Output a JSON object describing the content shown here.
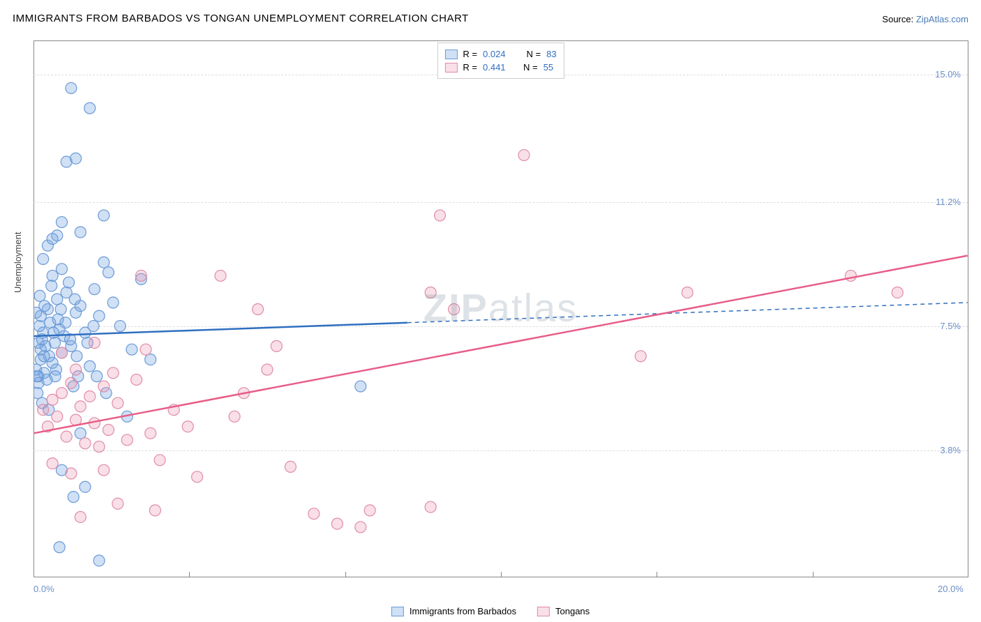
{
  "title": "IMMIGRANTS FROM BARBADOS VS TONGAN UNEMPLOYMENT CORRELATION CHART",
  "source_label": "Source:",
  "source_name": "ZipAtlas.com",
  "y_axis_label": "Unemployment",
  "watermark": {
    "bold": "ZIP",
    "rest": "atlas"
  },
  "chart": {
    "type": "scatter",
    "background_color": "#ffffff",
    "grid_color": "#dddddd",
    "xlim": [
      0,
      20
    ],
    "ylim": [
      0,
      16
    ],
    "x_tick_labels": [
      {
        "value": 0,
        "label": "0.0%"
      },
      {
        "value": 20,
        "label": "20.0%"
      }
    ],
    "x_minor_ticks": [
      3.33,
      6.67,
      10,
      13.33,
      16.67
    ],
    "y_ticks": [
      {
        "value": 3.8,
        "label": "3.8%"
      },
      {
        "value": 7.5,
        "label": "7.5%"
      },
      {
        "value": 11.2,
        "label": "11.2%"
      },
      {
        "value": 15.0,
        "label": "15.0%"
      }
    ],
    "series": [
      {
        "name": "Immigrants from Barbados",
        "fill": "rgba(120,165,225,0.35)",
        "stroke": "#6a9ad6",
        "line_color": "#2f6fc0",
        "r_value": "0.024",
        "n_value": "83",
        "trend": {
          "y_at_x0": 7.2,
          "y_at_x20": 8.2,
          "solid_until_x": 8.0
        },
        "points": [
          [
            0.1,
            7.0
          ],
          [
            0.15,
            6.5
          ],
          [
            0.1,
            6.0
          ],
          [
            0.2,
            7.3
          ],
          [
            0.15,
            6.8
          ],
          [
            0.05,
            6.2
          ],
          [
            0.1,
            5.8
          ],
          [
            0.25,
            6.9
          ],
          [
            0.12,
            7.5
          ],
          [
            0.18,
            7.1
          ],
          [
            0.3,
            8.0
          ],
          [
            0.22,
            6.1
          ],
          [
            0.08,
            5.5
          ],
          [
            0.35,
            7.6
          ],
          [
            0.4,
            6.4
          ],
          [
            0.28,
            5.9
          ],
          [
            0.15,
            7.8
          ],
          [
            0.5,
            8.3
          ],
          [
            0.45,
            7.0
          ],
          [
            0.6,
            6.7
          ],
          [
            0.55,
            7.4
          ],
          [
            0.4,
            9.0
          ],
          [
            0.7,
            8.5
          ],
          [
            0.65,
            7.2
          ],
          [
            0.8,
            6.9
          ],
          [
            0.9,
            7.9
          ],
          [
            0.75,
            8.8
          ],
          [
            1.0,
            8.1
          ],
          [
            1.1,
            7.3
          ],
          [
            1.2,
            6.3
          ],
          [
            0.85,
            5.7
          ],
          [
            0.95,
            6.0
          ],
          [
            1.3,
            8.6
          ],
          [
            1.4,
            7.8
          ],
          [
            1.5,
            9.4
          ],
          [
            1.5,
            10.8
          ],
          [
            1.6,
            9.1
          ],
          [
            0.5,
            10.2
          ],
          [
            0.6,
            10.6
          ],
          [
            1.0,
            10.3
          ],
          [
            1.0,
            4.3
          ],
          [
            0.6,
            3.2
          ],
          [
            0.85,
            2.4
          ],
          [
            1.1,
            2.7
          ],
          [
            0.55,
            0.9
          ],
          [
            1.4,
            0.5
          ],
          [
            0.7,
            12.4
          ],
          [
            0.9,
            12.5
          ],
          [
            0.8,
            14.6
          ],
          [
            1.2,
            14.0
          ],
          [
            0.2,
            9.5
          ],
          [
            0.3,
            9.9
          ],
          [
            0.4,
            10.1
          ],
          [
            1.7,
            8.2
          ],
          [
            1.85,
            7.5
          ],
          [
            2.1,
            6.8
          ],
          [
            2.3,
            8.9
          ],
          [
            2.5,
            6.5
          ],
          [
            2.0,
            4.8
          ],
          [
            7.0,
            5.7
          ],
          [
            1.35,
            6.0
          ],
          [
            1.55,
            5.5
          ],
          [
            0.33,
            6.6
          ],
          [
            0.48,
            6.2
          ],
          [
            0.05,
            7.9
          ],
          [
            0.13,
            8.4
          ],
          [
            0.23,
            8.1
          ],
          [
            0.38,
            8.7
          ],
          [
            0.6,
            9.2
          ],
          [
            0.22,
            6.6
          ],
          [
            0.07,
            6.0
          ],
          [
            0.42,
            7.3
          ],
          [
            0.58,
            8.0
          ],
          [
            0.18,
            5.2
          ],
          [
            0.32,
            5.0
          ],
          [
            0.52,
            7.7
          ],
          [
            0.46,
            6.0
          ],
          [
            0.92,
            6.6
          ],
          [
            1.15,
            7.0
          ],
          [
            1.28,
            7.5
          ],
          [
            0.78,
            7.1
          ],
          [
            0.68,
            7.6
          ],
          [
            0.88,
            8.3
          ]
        ]
      },
      {
        "name": "Tongans",
        "fill": "rgba(235,150,175,0.30)",
        "stroke": "#e08ca6",
        "line_color": "#e85d88",
        "r_value": "0.441",
        "n_value": "55",
        "trend": {
          "y_at_x0": 4.3,
          "y_at_x20": 9.6,
          "solid_until_x": 20.0
        },
        "points": [
          [
            0.2,
            5.0
          ],
          [
            0.3,
            4.5
          ],
          [
            0.4,
            5.3
          ],
          [
            0.5,
            4.8
          ],
          [
            0.6,
            5.5
          ],
          [
            0.7,
            4.2
          ],
          [
            0.8,
            5.8
          ],
          [
            0.9,
            4.7
          ],
          [
            1.0,
            5.1
          ],
          [
            1.1,
            4.0
          ],
          [
            1.2,
            5.4
          ],
          [
            1.3,
            4.6
          ],
          [
            1.4,
            3.9
          ],
          [
            1.5,
            5.7
          ],
          [
            1.6,
            4.4
          ],
          [
            1.8,
            5.2
          ],
          [
            2.0,
            4.1
          ],
          [
            2.2,
            5.9
          ],
          [
            2.5,
            4.3
          ],
          [
            2.7,
            3.5
          ],
          [
            2.4,
            6.8
          ],
          [
            0.6,
            6.7
          ],
          [
            0.9,
            6.2
          ],
          [
            1.3,
            7.0
          ],
          [
            1.7,
            6.1
          ],
          [
            3.0,
            5.0
          ],
          [
            3.3,
            4.5
          ],
          [
            3.5,
            3.0
          ],
          [
            4.3,
            4.8
          ],
          [
            4.5,
            5.5
          ],
          [
            5.0,
            6.2
          ],
          [
            5.2,
            6.9
          ],
          [
            5.5,
            3.3
          ],
          [
            4.8,
            8.0
          ],
          [
            2.3,
            9.0
          ],
          [
            4.0,
            9.0
          ],
          [
            6.0,
            1.9
          ],
          [
            6.5,
            1.6
          ],
          [
            7.0,
            1.5
          ],
          [
            7.2,
            2.0
          ],
          [
            8.5,
            2.1
          ],
          [
            8.5,
            8.5
          ],
          [
            9.0,
            8.0
          ],
          [
            8.7,
            10.8
          ],
          [
            10.5,
            12.6
          ],
          [
            13.0,
            6.6
          ],
          [
            14.0,
            8.5
          ],
          [
            17.5,
            9.0
          ],
          [
            18.5,
            8.5
          ],
          [
            1.0,
            1.8
          ],
          [
            1.8,
            2.2
          ],
          [
            2.6,
            2.0
          ],
          [
            0.4,
            3.4
          ],
          [
            0.8,
            3.1
          ],
          [
            1.5,
            3.2
          ]
        ]
      }
    ]
  }
}
